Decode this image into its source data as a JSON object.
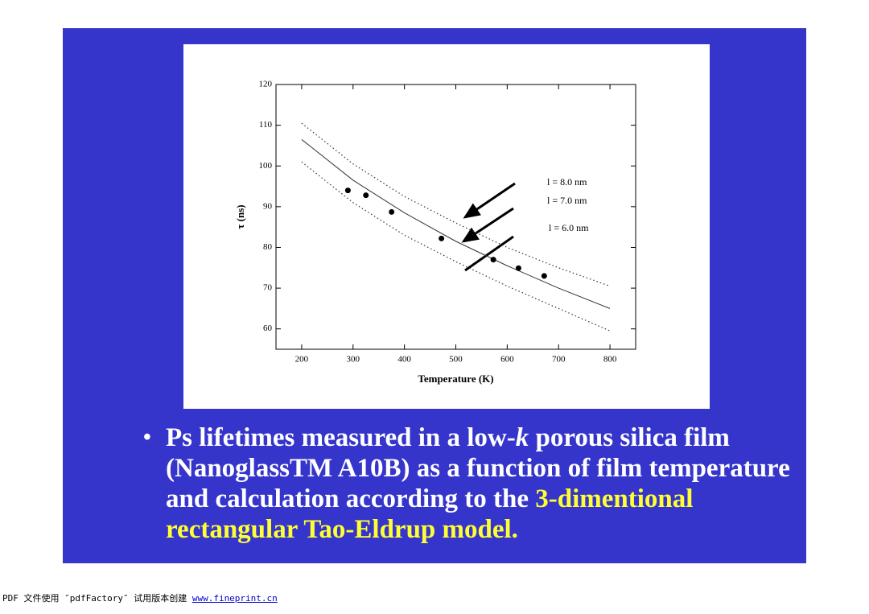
{
  "chart_data": {
    "type": "line",
    "xlabel": "Temperature (K)",
    "ylabel": "τ (ns)",
    "xlim": [
      150,
      850
    ],
    "ylim": [
      55,
      120
    ],
    "xticks": [
      200,
      300,
      400,
      500,
      600,
      700,
      800
    ],
    "yticks": [
      60,
      70,
      80,
      90,
      100,
      110,
      120
    ],
    "series": [
      {
        "name": "l = 8.0 nm",
        "color": "#333333",
        "dash": true,
        "x": [
          200,
          300,
          400,
          500,
          600,
          700,
          800
        ],
        "values": [
          110.5,
          100.5,
          92.5,
          86,
          80,
          75,
          70.5
        ]
      },
      {
        "name": "l = 7.0 nm",
        "color": "#333333",
        "dash": false,
        "x": [
          200,
          300,
          400,
          500,
          600,
          700,
          800
        ],
        "values": [
          106.5,
          96.5,
          88.5,
          81.5,
          75.5,
          70,
          65
        ]
      },
      {
        "name": "l = 6.0 nm",
        "color": "#333333",
        "dash": true,
        "x": [
          200,
          300,
          400,
          500,
          600,
          700,
          800
        ],
        "values": [
          101,
          91,
          83,
          76.5,
          70.5,
          65,
          59.5
        ]
      }
    ],
    "points": {
      "color": "#000000",
      "x": [
        290,
        325,
        375,
        472,
        573,
        622,
        672
      ],
      "values": [
        94,
        92.8,
        88.7,
        82.2,
        77,
        74.9,
        73
      ]
    }
  },
  "bullet": {
    "parts": [
      "Ps lifetimes measured in a low-",
      "k",
      " porous silica film (NanoglassTM A10B) as a function of film temperature and calculation according to the ",
      "3-dimentional rectangular Tao-Eldrup model."
    ]
  },
  "footer": {
    "text": "PDF 文件使用 ″pdfFactory″ 试用版本创建 ",
    "link": "www.fineprint.cn"
  }
}
